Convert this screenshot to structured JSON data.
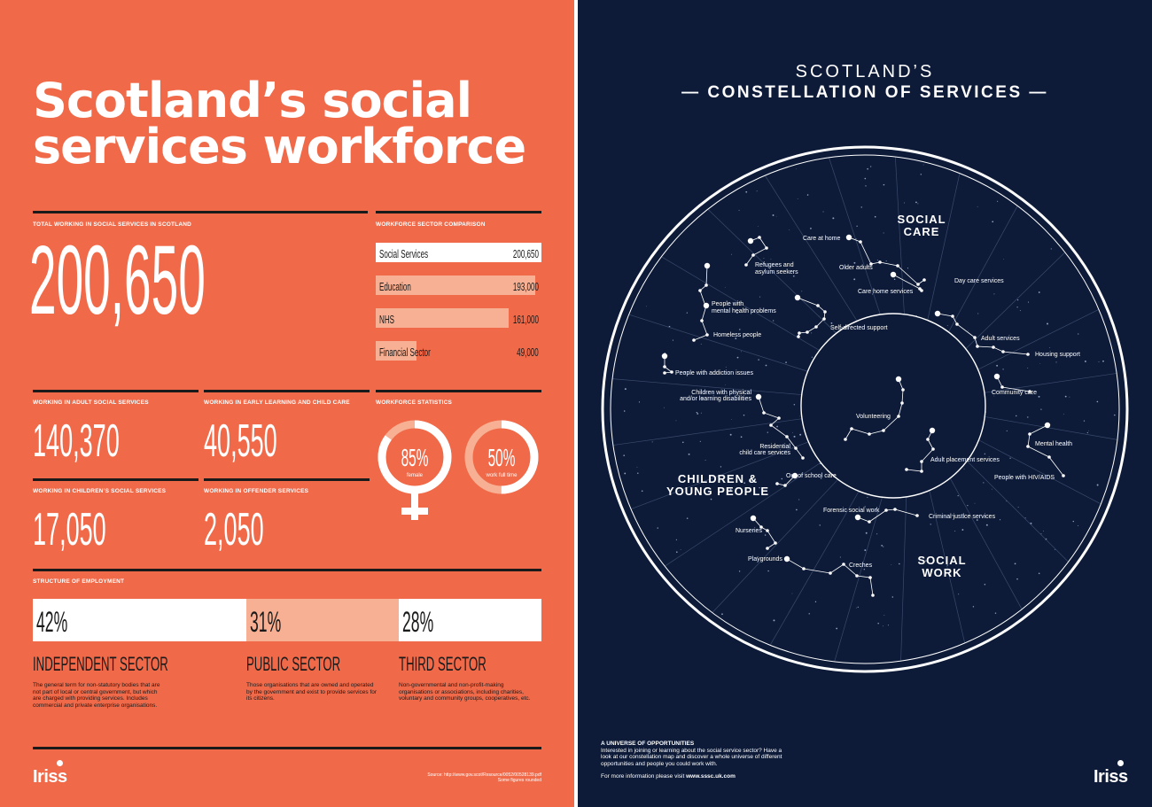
{
  "left": {
    "title_line1": "Scotland’s social",
    "title_line2": "services workforce",
    "total": {
      "label": "TOTAL WORKING IN SOCIAL SERVICES IN SCOTLAND",
      "value": "200,650"
    },
    "comparison": {
      "label": "WORKFORCE SECTOR COMPARISON",
      "items": [
        {
          "name": "Social Services",
          "value": "200,650",
          "fraction": 1.0
        },
        {
          "name": "Education",
          "value": "193,000",
          "fraction": 0.962
        },
        {
          "name": "NHS",
          "value": "161,000",
          "fraction": 0.802
        },
        {
          "name": "Financial Sector",
          "value": "49,000",
          "fraction": 0.244
        }
      ]
    },
    "adult": {
      "label": "WORKING IN ADULT SOCIAL SERVICES",
      "value": "140,370"
    },
    "early": {
      "label": "WORKING IN EARLY LEARNING AND CHILD CARE",
      "value": "40,550"
    },
    "children": {
      "label": "WORKING IN CHILDREN’S SOCIAL SERVICES",
      "value": "17,050"
    },
    "offender": {
      "label": "WORKING IN OFFENDER SERVICES",
      "value": "2,050"
    },
    "stats": {
      "label": "WORKFORCE STATISTICS",
      "female": {
        "pct": "85%",
        "caption": "female",
        "fraction": 0.85
      },
      "fulltime": {
        "pct": "50%",
        "caption": "work full time",
        "fraction": 0.5
      }
    },
    "structure": {
      "label": "STRUCTURE OF EMPLOYMENT",
      "sectors": [
        {
          "pct": "42%",
          "title": "INDEPENDENT SECTOR",
          "desc": "The general term for non-statutory bodies that are not part of local or central government, but which are charged with providing services. Includes commercial and private enterprise organisations."
        },
        {
          "pct": "31%",
          "title": "PUBLIC SECTOR",
          "desc": "Those organisations that are owned and operated by the government and exist to provide services for its citizens."
        },
        {
          "pct": "28%",
          "title": "THIRD SECTOR",
          "desc": "Non-governmental and non-profit-making organisations or associations, including charities, voluntary and community groups, cooperatives, etc."
        }
      ]
    },
    "logo": "Iriss",
    "source_line1": "Source: http://www.gov.scot/Resource/0052/00528139.pdf",
    "source_line2": "Some figures rounded"
  },
  "right": {
    "title_line1": "SCOTLAND’S",
    "title_line2": "— CONSTELLATION OF SERVICES —",
    "regions": {
      "social_care_1": "SOCIAL",
      "social_care_2": "CARE",
      "children_1": "CHILDREN &",
      "children_2": "YOUNG PEOPLE",
      "social_work_1": "SOCIAL",
      "social_work_2": "WORK"
    },
    "services": [
      "Care at home",
      "Refugees and",
      "asylum seekers",
      "Older adults",
      "Day care services",
      "Care home services",
      "People with",
      "mental health problems",
      "Self-directed support",
      "Homeless people",
      "Adult services",
      "Housing support",
      "People with addiction issues",
      "Children with physical",
      "and/or learning disabilities",
      "Community care",
      "Volunteering",
      "Mental health",
      "Residential",
      "child care services",
      "Adult placement services",
      "Out of school care",
      "People with HIV/AIDS",
      "Forensic social work",
      "Criminal justice services",
      "Nurseries",
      "Playgrounds",
      "Creches"
    ],
    "footer": {
      "heading": "A UNIVERSE OF OPPORTUNITIES",
      "body": "Interested in joining or learning about the social service sector? Have a look at our constellation map and discover a whole universe of different opportunities and people you could work with.",
      "more_prefix": "For more information please visit ",
      "more_link": "www.sssc.uk.com"
    },
    "logo": "Iriss"
  }
}
